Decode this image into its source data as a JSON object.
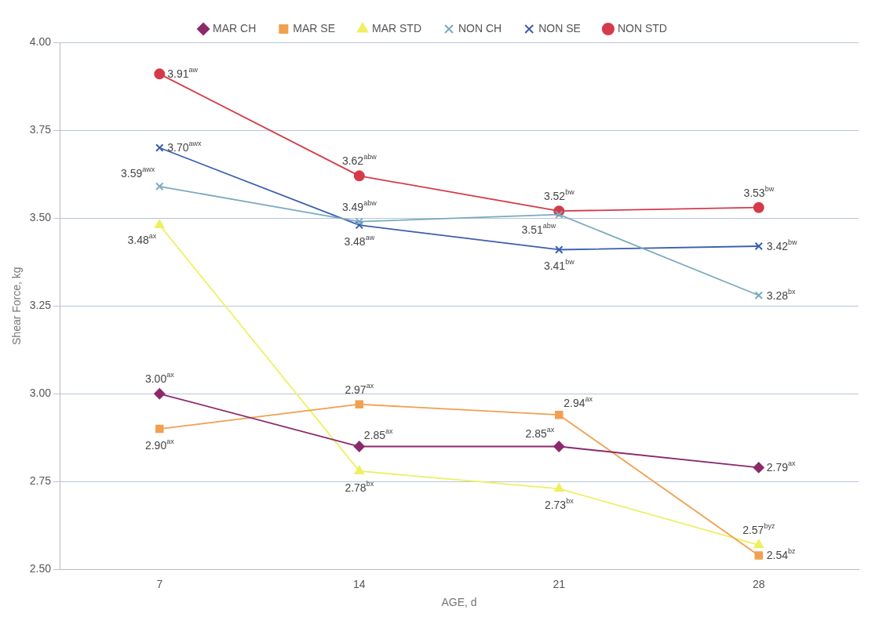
{
  "chart_data": {
    "type": "line",
    "xlabel": "AGE, d",
    "ylabel": "Shear Force, kg",
    "categories": [
      "7",
      "14",
      "21",
      "28"
    ],
    "ylim": [
      2.5,
      4.0
    ],
    "yticks": [
      {
        "value": 2.5,
        "label": "2.50"
      },
      {
        "value": 2.75,
        "label": "2.75"
      },
      {
        "value": 3.0,
        "label": "3.00"
      },
      {
        "value": 3.25,
        "label": "3.25"
      },
      {
        "value": 3.5,
        "label": "3.50"
      },
      {
        "value": 3.75,
        "label": "3.75"
      },
      {
        "value": 4.0,
        "label": "4.00"
      }
    ],
    "grid": "y",
    "legend": "top",
    "line_style": "solid",
    "series": [
      {
        "name": "MAR CH",
        "color": "#8b2a6b",
        "marker": "diamond",
        "values": [
          3.0,
          2.85,
          2.85,
          2.79
        ],
        "value_labels": [
          "3.00$^{ax}$",
          "2.85$^{ax}$",
          "2.85$^{ax}$",
          "2.79$^{ax}$"
        ]
      },
      {
        "name": "MAR SE",
        "color": "#f0a050",
        "marker": "square",
        "values": [
          2.9,
          2.97,
          2.94,
          2.54
        ],
        "value_labels": [
          "2.90$^{ax}$",
          "2.97$^{ax}$",
          "2.94$^{ax}$",
          "2.54$^{bz}$"
        ]
      },
      {
        "name": "MAR STD",
        "color": "#eef060",
        "marker": "triangle",
        "values": [
          3.48,
          2.78,
          2.73,
          2.57
        ],
        "value_labels": [
          "3.48$^{ax}$",
          "2.78$^{bx}$",
          "2.73$^{bx}$",
          "2.57$^{byz}$"
        ]
      },
      {
        "name": "NON CH",
        "color": "#7aaabf",
        "marker": "cross",
        "values": [
          3.59,
          3.49,
          3.51,
          3.28
        ],
        "value_labels": [
          "3.59$^{awx}$",
          "3.49$^{abw}$",
          "3.51$^{abw}$",
          "3.28$^{bx}$"
        ]
      },
      {
        "name": "NON SE",
        "color": "#3a5fb0",
        "marker": "cross",
        "values": [
          3.7,
          3.48,
          3.41,
          3.42
        ],
        "value_labels": [
          "3.70$^{awx}$",
          "3.48$^{aw}$",
          "3.41$^{bw}$",
          "3.42$^{bw}$"
        ]
      },
      {
        "name": "NON STD",
        "color": "#d63a4a",
        "marker": "circle",
        "values": [
          3.91,
          3.62,
          3.52,
          3.53
        ],
        "value_labels": [
          "3.91$^{aw}$",
          "3.62$^{abw}$",
          "3.52$^{bw}$",
          "3.53$^{bw}$"
        ]
      }
    ]
  }
}
